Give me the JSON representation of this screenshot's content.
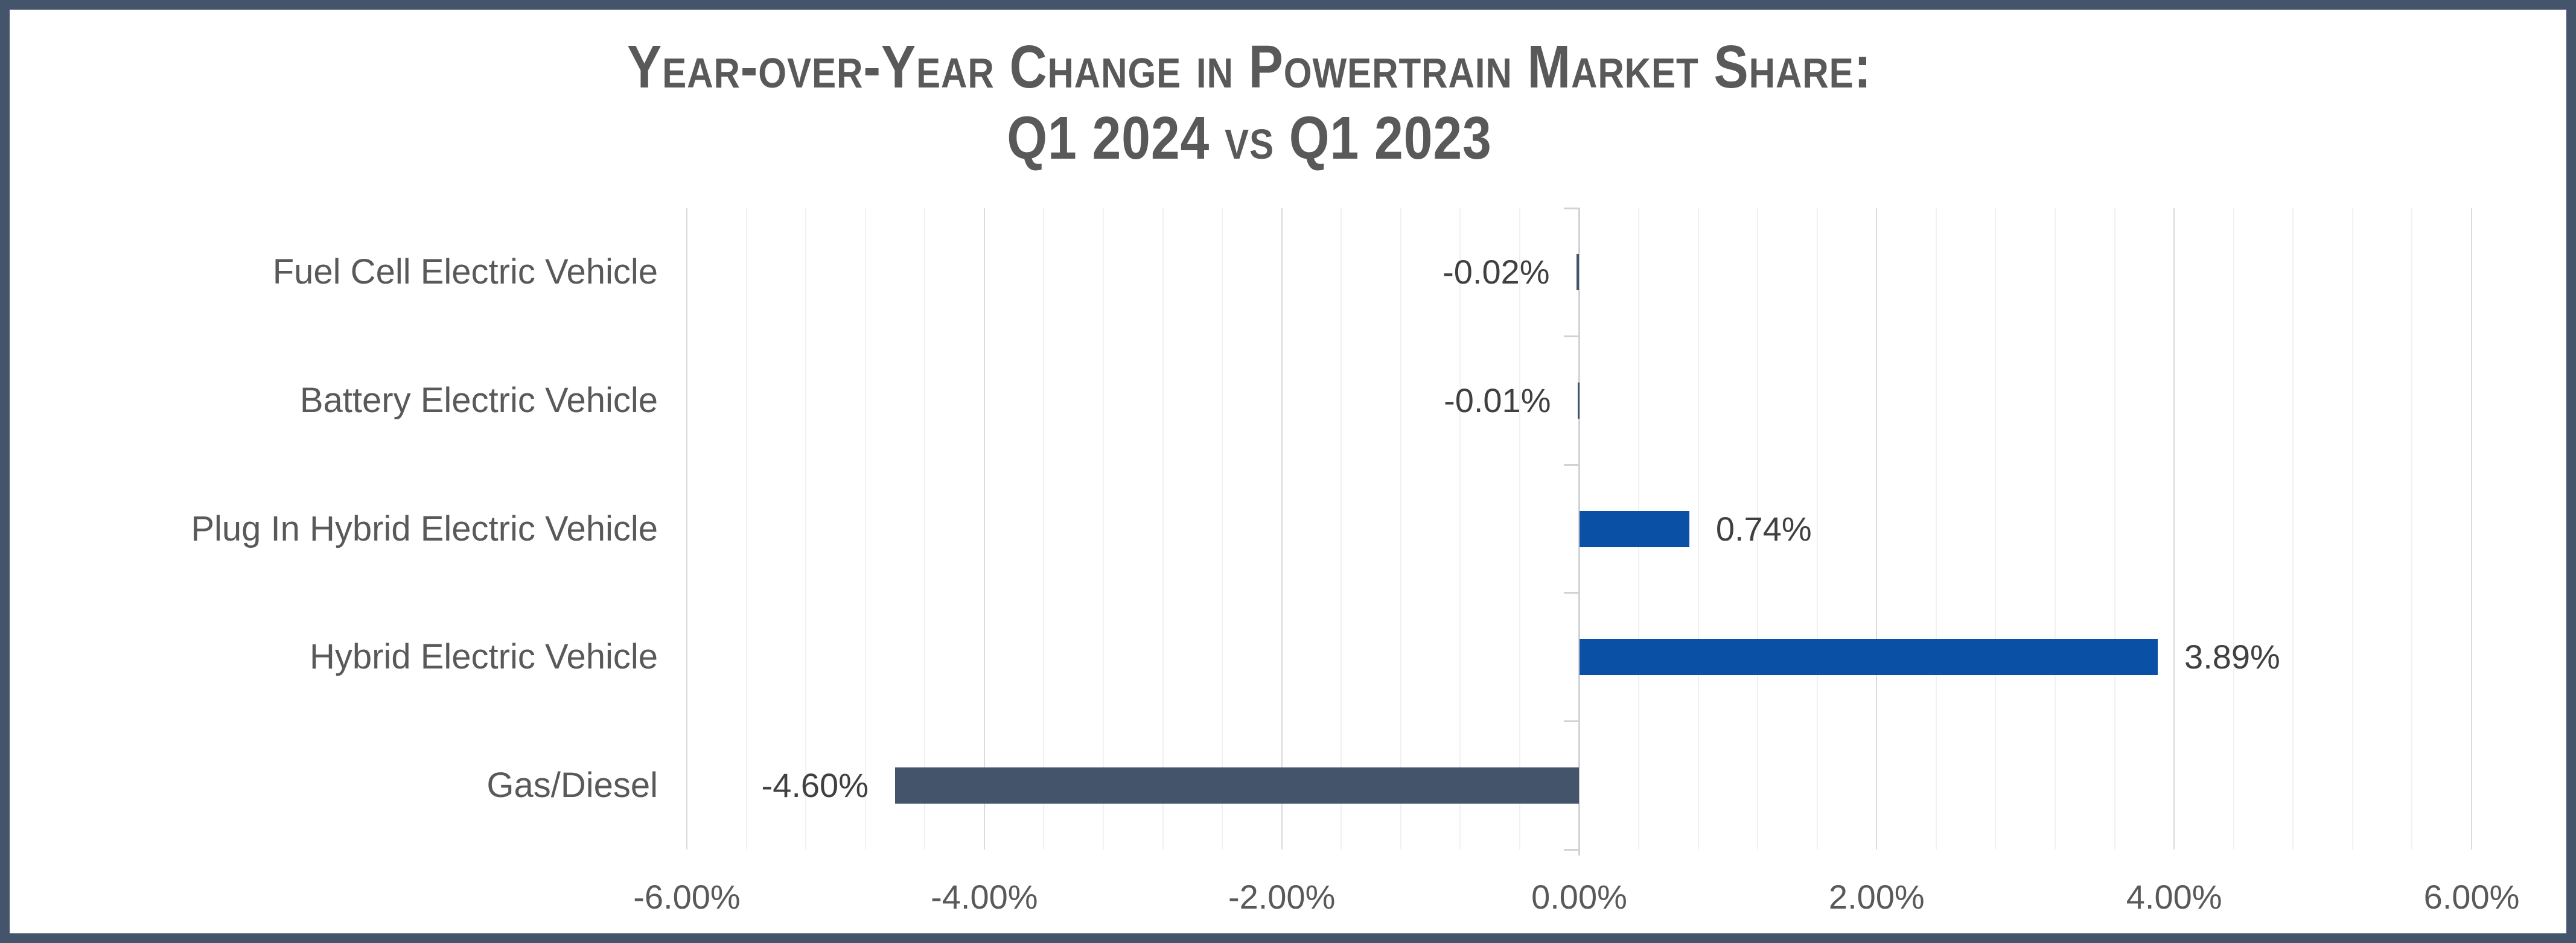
{
  "title": {
    "line1": "Year-over-Year Change in Powertrain Market Share:",
    "line2": "Q1 2024 vs Q1 2023",
    "color": "#595959"
  },
  "colors": {
    "frame_border": "#44546A",
    "positive_bar": "#0A51A5",
    "negative_bar": "#44546A",
    "data_label": "#404040",
    "axis_label": "#595959"
  },
  "chart_data": {
    "type": "bar",
    "orientation": "horizontal",
    "title": "Year-over-Year Change in Powertrain Market Share: Q1 2024 vs Q1 2023",
    "categories": [
      "Fuel Cell Electric Vehicle",
      "Battery Electric Vehicle",
      "Plug In Hybrid Electric Vehicle",
      "Hybrid Electric Vehicle",
      "Gas/Diesel"
    ],
    "values": [
      -0.02,
      -0.01,
      0.74,
      3.89,
      -4.6
    ],
    "data_labels": [
      "-0.02%",
      "-0.01%",
      "0.74%",
      "3.89%",
      "-4.60%"
    ],
    "xlabel": "",
    "ylabel": "",
    "xlim": [
      -6,
      6
    ],
    "x_ticks": [
      -6,
      -4,
      -2,
      0,
      2,
      4,
      6
    ],
    "x_tick_labels": [
      "-6.00%",
      "-4.00%",
      "-2.00%",
      "0.00%",
      "2.00%",
      "4.00%",
      "6.00%"
    ],
    "minor_unit": 0.4,
    "grid": "vertical major and minor gridlines",
    "legend": "none"
  }
}
